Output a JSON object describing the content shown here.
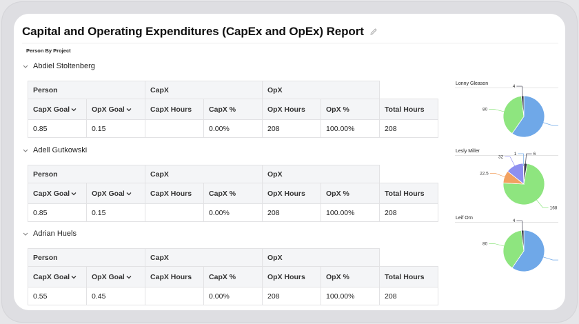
{
  "report": {
    "title": "Capital and Operating Expenditures (CapEx and OpEx) Report",
    "subtitle": "Person By Project"
  },
  "table": {
    "categories": [
      "Person",
      "CapX",
      "OpX"
    ],
    "columns": [
      "CapX Goal",
      "OpX Goal",
      "CapX Hours",
      "CapX  %",
      "OpX Hours",
      "OpX %",
      "Total Hours"
    ]
  },
  "groups": [
    {
      "name": "Abdiel Stoltenberg",
      "values": [
        "0.85",
        "0.15",
        "",
        "0.00%",
        "208",
        "100.00%",
        "208"
      ]
    },
    {
      "name": "Adell Gutkowski",
      "values": [
        "0.85",
        "0.15",
        "",
        "0.00%",
        "208",
        "100.00%",
        "208"
      ]
    },
    {
      "name": "Adrian Huels",
      "values": [
        "0.55",
        "0.45",
        "",
        "0.00%",
        "208",
        "100.00%",
        "208"
      ]
    }
  ],
  "colors": {
    "blue": "#6fa8e8",
    "green": "#8ee57f",
    "orange": "#f2a160",
    "purple": "#8d8ff0",
    "dark": "#3b3b4d",
    "teal": "#7fd9d2"
  },
  "pies": [
    {
      "title": "Lonny Gleason",
      "slices": [
        {
          "value": 124,
          "color": "blue",
          "label": ""
        },
        {
          "value": 80,
          "color": "green",
          "label": "80"
        },
        {
          "value": 4,
          "color": "dark",
          "label": "4"
        }
      ]
    },
    {
      "title": "Lesly Miller",
      "slices": [
        {
          "value": 6,
          "color": "dark",
          "label": "6"
        },
        {
          "value": 168,
          "color": "green",
          "label": "168"
        },
        {
          "value": 22.5,
          "color": "orange",
          "label": "22.5"
        },
        {
          "value": 32,
          "color": "purple",
          "label": "32"
        },
        {
          "value": 1,
          "color": "blue",
          "label": "1"
        }
      ]
    },
    {
      "title": "Leif Orn",
      "slices": [
        {
          "value": 124,
          "color": "blue",
          "label": ""
        },
        {
          "value": 80,
          "color": "green",
          "label": "80"
        },
        {
          "value": 4,
          "color": "dark",
          "label": "4"
        }
      ]
    }
  ]
}
